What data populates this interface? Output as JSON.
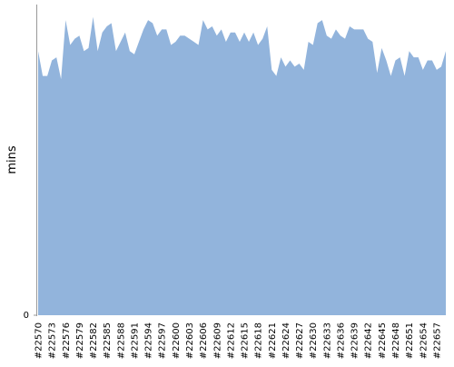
{
  "chart_data": {
    "type": "area",
    "y_label": "mins",
    "color": "#92b4dc",
    "categories": [
      "#22570",
      null,
      null,
      "#22573",
      null,
      null,
      "#22576",
      null,
      null,
      "#22579",
      null,
      null,
      "#22582",
      null,
      null,
      "#22585",
      null,
      null,
      "#22588",
      null,
      null,
      "#22591",
      null,
      null,
      "#22594",
      null,
      null,
      "#22597",
      null,
      null,
      "#22600",
      null,
      null,
      "#22603",
      null,
      null,
      "#22606",
      null,
      null,
      "#22609",
      null,
      null,
      "#22612",
      null,
      null,
      "#22615",
      null,
      null,
      "#22618",
      null,
      null,
      "#22621",
      null,
      null,
      "#22624",
      null,
      null,
      "#22627",
      null,
      null,
      "#22630",
      null,
      null,
      "#22633",
      null,
      null,
      "#22636",
      null,
      null,
      "#22639",
      null,
      null,
      "#22642",
      null,
      null,
      "#22645",
      null,
      null,
      "#22648",
      null,
      null,
      "#22651",
      null,
      null,
      "#22654",
      null,
      null,
      "#22657",
      null,
      null
    ],
    "values": [
      85,
      77,
      77,
      82,
      83,
      76,
      95,
      87,
      89,
      90,
      85,
      86,
      96,
      85,
      91,
      93,
      94,
      85,
      88,
      91,
      85,
      84,
      88,
      92,
      95,
      94,
      90,
      92,
      92,
      87,
      88,
      90,
      90,
      89,
      88,
      87,
      95,
      92,
      93,
      90,
      92,
      88,
      91,
      91,
      88,
      91,
      88,
      91,
      87,
      89,
      93,
      79,
      77,
      83,
      80,
      82,
      80,
      81,
      79,
      88,
      87,
      94,
      95,
      90,
      89,
      92,
      90,
      89,
      93,
      92,
      92,
      92,
      89,
      88,
      78,
      86,
      82,
      77,
      82,
      83,
      77,
      85,
      83,
      83,
      79,
      82,
      82,
      79,
      80,
      85
    ],
    "ylim": [
      0,
      100
    ],
    "yticks": [
      0
    ]
  }
}
